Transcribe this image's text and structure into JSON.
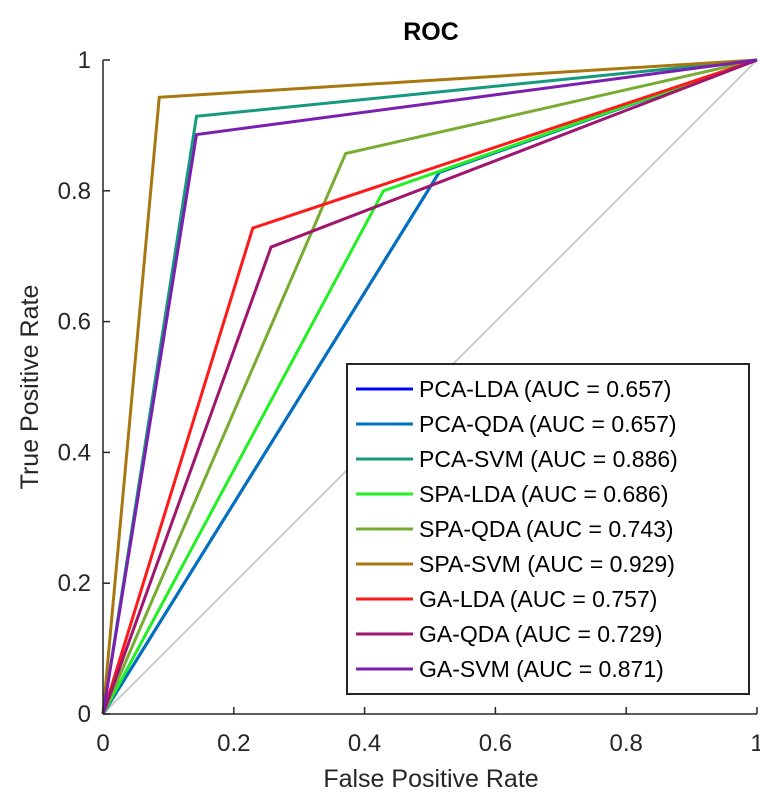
{
  "chart_data": {
    "type": "line",
    "title": "ROC",
    "xlabel": "False Positive Rate",
    "ylabel": "True Positive Rate",
    "xlim": [
      0,
      1
    ],
    "ylim": [
      0,
      1
    ],
    "xticks": [
      "0",
      "0.2",
      "0.4",
      "0.6",
      "0.8",
      "1"
    ],
    "yticks": [
      "0",
      "0.2",
      "0.4",
      "0.6",
      "0.8",
      "1"
    ],
    "grid": false,
    "legend_position": "bottom-right",
    "diagonal": {
      "x": [
        0,
        1
      ],
      "y": [
        0,
        1
      ],
      "color": "#cccccc"
    },
    "series": [
      {
        "name": "PCA-LDA (AUC = 0.657)",
        "color": "#0000ff",
        "x": [
          0,
          0.514,
          1
        ],
        "y": [
          0,
          0.828,
          1
        ]
      },
      {
        "name": "PCA-QDA (AUC = 0.657)",
        "color": "#0072bd",
        "x": [
          0,
          0.514,
          1
        ],
        "y": [
          0,
          0.828,
          1
        ]
      },
      {
        "name": "PCA-SVM (AUC = 0.886)",
        "color": "#149a7e",
        "x": [
          0,
          0.143,
          1
        ],
        "y": [
          0,
          0.914,
          1
        ]
      },
      {
        "name": "SPA-LDA (AUC = 0.686)",
        "color": "#22f022",
        "x": [
          0,
          0.429,
          1
        ],
        "y": [
          0,
          0.8,
          1
        ]
      },
      {
        "name": "SPA-QDA (AUC = 0.743)",
        "color": "#77ac30",
        "x": [
          0,
          0.371,
          1
        ],
        "y": [
          0,
          0.857,
          1
        ]
      },
      {
        "name": "SPA-SVM (AUC = 0.929)",
        "color": "#a8770f",
        "x": [
          0,
          0.086,
          1
        ],
        "y": [
          0,
          0.943,
          1
        ]
      },
      {
        "name": "GA-LDA (AUC = 0.757)",
        "color": "#ff1a1a",
        "x": [
          0,
          0.229,
          1
        ],
        "y": [
          0,
          0.743,
          1
        ]
      },
      {
        "name": "GA-QDA (AUC = 0.729)",
        "color": "#a0166e",
        "x": [
          0,
          0.257,
          1
        ],
        "y": [
          0,
          0.714,
          1
        ]
      },
      {
        "name": "GA-SVM (AUC = 0.871)",
        "color": "#7a1fb0",
        "x": [
          0,
          0.143,
          1
        ],
        "y": [
          0,
          0.886,
          1
        ]
      }
    ]
  }
}
